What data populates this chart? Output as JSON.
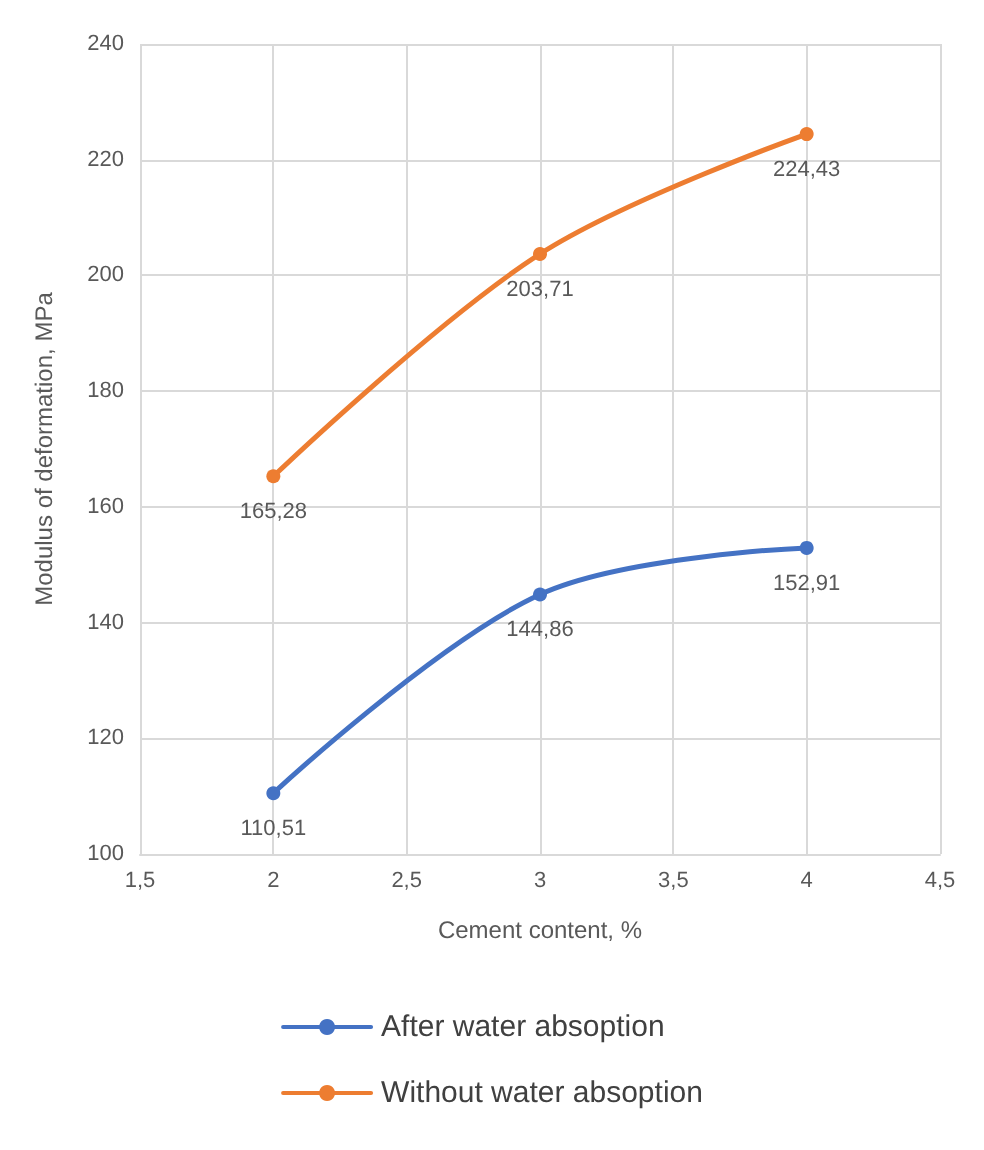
{
  "chart_data": {
    "type": "line",
    "xlabel": "Cement content, %",
    "ylabel": "Modulus of deformation, MPa",
    "x": [
      2,
      3,
      4
    ],
    "series": [
      {
        "name": "After water absoption",
        "color": "#4472c4",
        "values": [
          110.51,
          144.86,
          152.91
        ],
        "value_labels": [
          "110,51",
          "144,86",
          "152,91"
        ]
      },
      {
        "name": "Without water absoption",
        "color": "#ed7d31",
        "values": [
          165.28,
          203.71,
          224.43
        ],
        "value_labels": [
          "165,28",
          "203,71",
          "224,43"
        ]
      }
    ],
    "xlim": [
      1.5,
      4.5
    ],
    "xticks": [
      {
        "value": 1.5,
        "label": "1,5"
      },
      2,
      {
        "value": 2.5,
        "label": "2,5"
      },
      3,
      {
        "value": 3.5,
        "label": "3,5"
      },
      4,
      {
        "value": 4.5,
        "label": "4,5"
      }
    ],
    "ylim": [
      100,
      240
    ],
    "yticks": [
      100,
      120,
      140,
      160,
      180,
      200,
      220,
      240
    ],
    "grid": true,
    "legend": "bottom",
    "marker": "circle",
    "line_style": "solid"
  }
}
